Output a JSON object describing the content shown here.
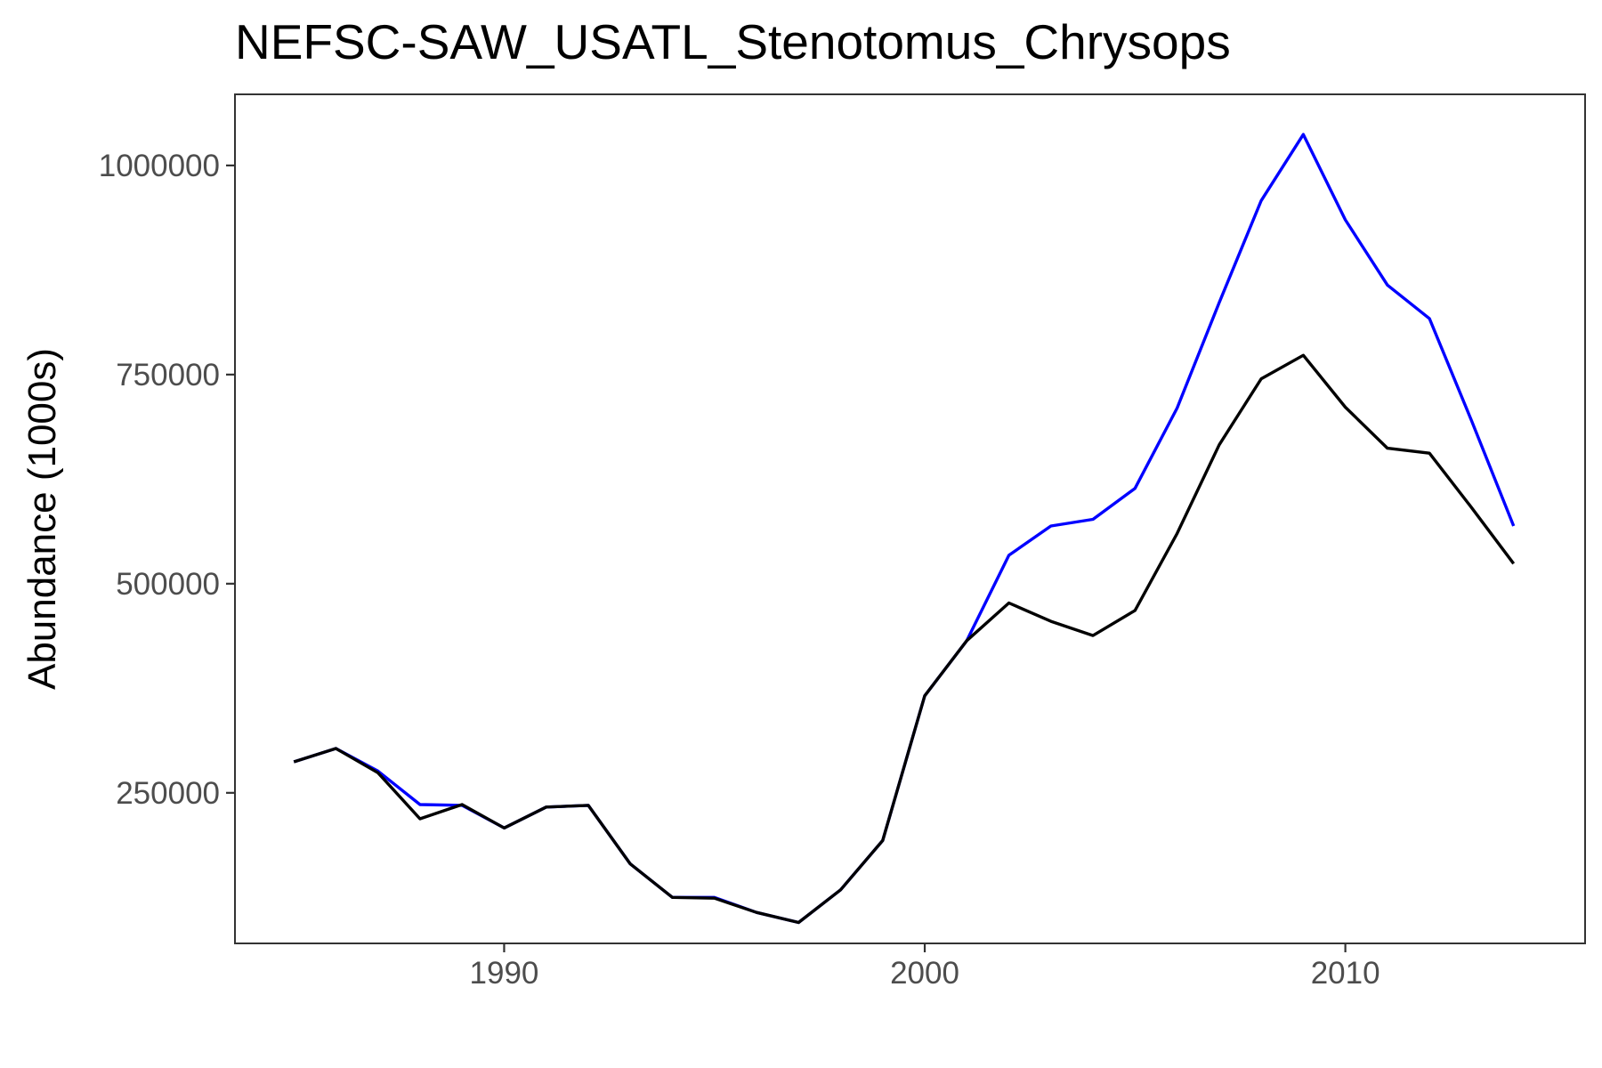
{
  "chart_data": {
    "type": "line",
    "title": "NEFSC-SAW_USATL_Stenotomus_Chrysops",
    "xlabel": "",
    "ylabel": "Abundance (1000s)",
    "xlim": [
      1983.6,
      2015.7
    ],
    "ylim": [
      70000,
      1085000
    ],
    "x_ticks": [
      1990,
      2000,
      2010
    ],
    "x_tick_labels": [
      "1990",
      "2000",
      "2010"
    ],
    "y_ticks": [
      250000,
      500000,
      750000,
      1000000
    ],
    "y_tick_labels": [
      "250000",
      "500000",
      "750000",
      "1000000"
    ],
    "grid": false,
    "legend": "none",
    "x": [
      1985,
      1986,
      1987,
      1988,
      1989,
      1990,
      1991,
      1992,
      1993,
      1994,
      1995,
      1996,
      1997,
      1998,
      1999,
      2000,
      2001,
      2002,
      2003,
      2004,
      2005,
      2006,
      2007,
      2008,
      2009,
      2010,
      2011,
      2012,
      2013,
      2014
    ],
    "series": [
      {
        "color": "#0000ff",
        "values": [
          287000,
          303000,
          276000,
          236000,
          235000,
          208000,
          233000,
          235000,
          165000,
          125000,
          125000,
          107000,
          95000,
          134000,
          193000,
          366000,
          432000,
          534000,
          569000,
          577000,
          614000,
          710000,
          836000,
          958000,
          1037000,
          935000,
          857000,
          817000,
          695000,
          569000
        ]
      },
      {
        "color": "#000000",
        "values": [
          287000,
          303000,
          274000,
          219000,
          236000,
          208000,
          233000,
          235000,
          165000,
          125000,
          124000,
          107000,
          95000,
          134000,
          193000,
          366000,
          432000,
          477000,
          455000,
          438000,
          468000,
          560000,
          666000,
          745000,
          773000,
          711000,
          662000,
          656000,
          591000,
          524000
        ]
      }
    ]
  }
}
